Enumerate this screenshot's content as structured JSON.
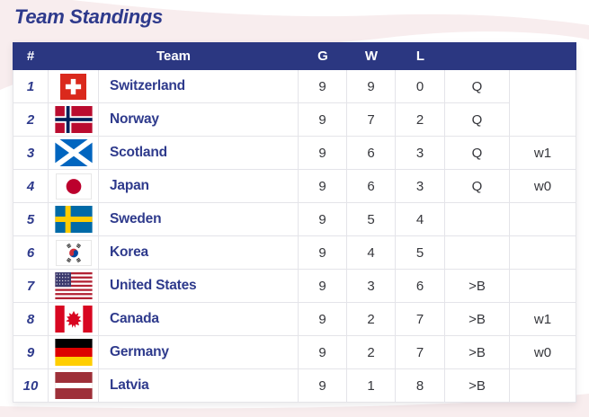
{
  "page": {
    "title": "Team Standings"
  },
  "colors": {
    "header_bg": "#2b3781",
    "accent_blue": "#2e3a8c",
    "cell_text": "#35363b",
    "cell_border": "#e4e4e9",
    "background_pink": "#f8edee"
  },
  "table": {
    "columns": {
      "rank": "#",
      "team": "Team",
      "games": "G",
      "wins": "W",
      "losses": "L",
      "qualification": "",
      "tiebreaker": ""
    },
    "rows": [
      {
        "rank": "1",
        "flag": "switzerland",
        "team": "Switzerland",
        "g": "9",
        "w": "9",
        "l": "0",
        "qual": "Q",
        "tb": "",
        "tb_span": 2
      },
      {
        "rank": "2",
        "flag": "norway",
        "team": "Norway",
        "g": "9",
        "w": "7",
        "l": "2",
        "qual": "Q",
        "tb": "",
        "tb_span": 0
      },
      {
        "rank": "3",
        "flag": "scotland",
        "team": "Scotland",
        "g": "9",
        "w": "6",
        "l": "3",
        "qual": "Q",
        "tb": "w1",
        "tb_span": 1
      },
      {
        "rank": "4",
        "flag": "japan",
        "team": "Japan",
        "g": "9",
        "w": "6",
        "l": "3",
        "qual": "Q",
        "tb": "w0",
        "tb_span": 1
      },
      {
        "rank": "5",
        "flag": "sweden",
        "team": "Sweden",
        "g": "9",
        "w": "5",
        "l": "4",
        "qual": "",
        "tb": "",
        "tb_span": 1
      },
      {
        "rank": "6",
        "flag": "korea",
        "team": "Korea",
        "g": "9",
        "w": "4",
        "l": "5",
        "qual": "",
        "tb": "",
        "tb_span": 1
      },
      {
        "rank": "7",
        "flag": "united-states",
        "team": "United States",
        "g": "9",
        "w": "3",
        "l": "6",
        "qual": ">B",
        "tb": "",
        "tb_span": 1
      },
      {
        "rank": "8",
        "flag": "canada",
        "team": "Canada",
        "g": "9",
        "w": "2",
        "l": "7",
        "qual": ">B",
        "tb": "w1",
        "tb_span": 1
      },
      {
        "rank": "9",
        "flag": "germany",
        "team": "Germany",
        "g": "9",
        "w": "2",
        "l": "7",
        "qual": ">B",
        "tb": "w0",
        "tb_span": 1
      },
      {
        "rank": "10",
        "flag": "latvia",
        "team": "Latvia",
        "g": "9",
        "w": "1",
        "l": "8",
        "qual": ">B",
        "tb": "",
        "tb_span": 1
      }
    ]
  }
}
